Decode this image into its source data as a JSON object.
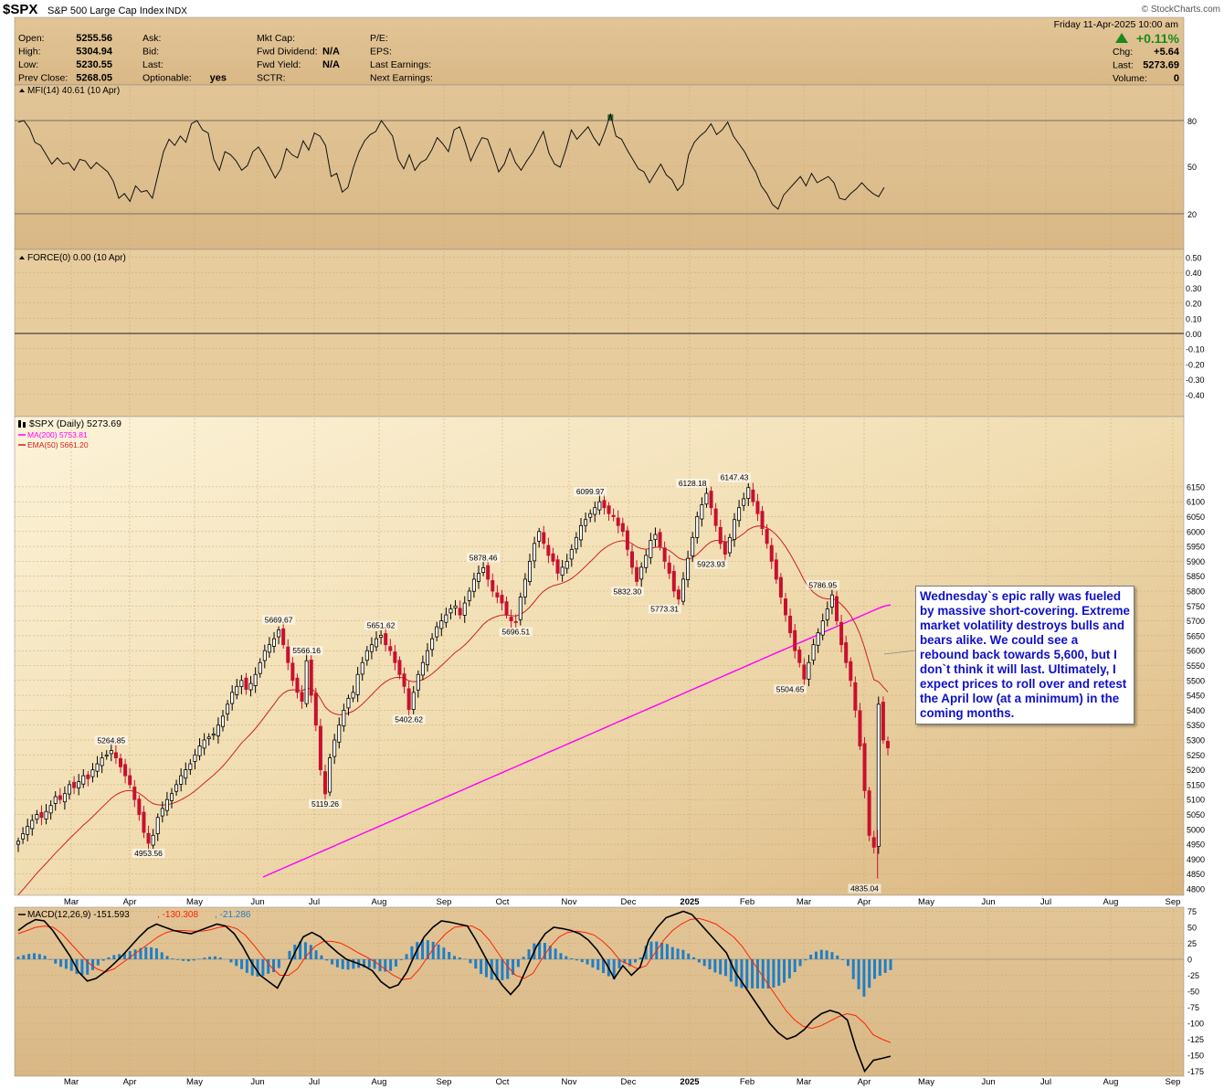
{
  "header": {
    "symbol": "$SPX",
    "name": "S&P 500 Large Cap Index",
    "exchange": "INDX",
    "date": "Friday  11-Apr-2025 10:00 am",
    "brand": "© StockCharts.com",
    "change_pct": "+0.11%",
    "col1": [
      [
        "Open:",
        "5255.56"
      ],
      [
        "High:",
        "5304.94"
      ],
      [
        "Low:",
        "5230.55"
      ],
      [
        "Prev Close:",
        "5268.05"
      ]
    ],
    "col2": [
      [
        "Ask:",
        ""
      ],
      [
        "Bid:",
        ""
      ],
      [
        "Last:",
        ""
      ],
      [
        "Optionable:",
        "yes"
      ]
    ],
    "col3": [
      [
        "Mkt Cap:",
        ""
      ],
      [
        "Fwd Dividend:",
        "N/A"
      ],
      [
        "Fwd Yield:",
        "N/A"
      ],
      [
        "SCTR:",
        ""
      ]
    ],
    "col4": [
      [
        "P/E:",
        ""
      ],
      [
        "EPS:",
        ""
      ],
      [
        "Last Earnings:",
        ""
      ],
      [
        "Next Earnings:",
        ""
      ]
    ],
    "col5": [
      [
        "Chg:",
        "+5.64"
      ],
      [
        "Last:",
        "5273.69"
      ],
      [
        "Volume:",
        "0"
      ]
    ]
  },
  "annotation": "Wednesday`s epic rally was fueled by massive short-covering. Extreme market volatility destroys bulls and bears alike. We could see a rebound back towards 5,600, but I don`t think it will last. Ultimately, I expect prices to roll over and retest the April low (at a minimum) in the coming months.",
  "colors": {
    "panel_bg": "#e6c796",
    "up_bar": "#000000",
    "down_bar": "#c8102e",
    "ma200": "#ff00ff",
    "ema50": "#cc2222",
    "macd_line": "#000000",
    "signal_line": "#ff2200",
    "histogram": "#1e7fc8",
    "mfi_fill": "#2f6a2f"
  },
  "chart_data": [
    {
      "type": "line",
      "legend": "MFI(14) 40.61 (10 Apr)",
      "ylim": [
        0,
        100
      ],
      "yticks": [
        20,
        50,
        80
      ],
      "series": [
        {
          "values": [
            79,
            80,
            75,
            66,
            64,
            58,
            52,
            56,
            52,
            53,
            48,
            55,
            54,
            49,
            53,
            50,
            47,
            41,
            30,
            33,
            28,
            38,
            34,
            35,
            30,
            45,
            60,
            68,
            64,
            70,
            66,
            78,
            80,
            74,
            72,
            55,
            48,
            60,
            58,
            54,
            48,
            51,
            60,
            63,
            57,
            50,
            43,
            49,
            62,
            58,
            56,
            67,
            61,
            72,
            70,
            64,
            44,
            46,
            34,
            37,
            50,
            60,
            67,
            71,
            73,
            80,
            75,
            70,
            55,
            49,
            58,
            48,
            53,
            55,
            61,
            69,
            65,
            60,
            74,
            76,
            66,
            54,
            62,
            69,
            68,
            58,
            47,
            52,
            62,
            53,
            48,
            54,
            59,
            66,
            73,
            59,
            52,
            50,
            61,
            74,
            68,
            72,
            76,
            69,
            64,
            73,
            84,
            70,
            68,
            61,
            55,
            49,
            47,
            40,
            46,
            52,
            45,
            42,
            35,
            39,
            58,
            66,
            70,
            73,
            78,
            71,
            74,
            79,
            70,
            65,
            60,
            53,
            47,
            38,
            33,
            26,
            23,
            32,
            36,
            40,
            44,
            38,
            46,
            40,
            42,
            44,
            40,
            30,
            29,
            33,
            36,
            40,
            36,
            33,
            31,
            37
          ]
        }
      ]
    },
    {
      "type": "line",
      "legend": "FORCE(0) 0.00 (10 Apr)",
      "ylim": [
        -0.5,
        0.5
      ],
      "yticks": [
        0.5,
        0.4,
        0.3,
        0.2,
        0.1,
        0,
        -0.1,
        -0.2,
        -0.3,
        -0.4
      ],
      "ytick_labels": [
        "0.50",
        "0.40",
        "0.30",
        "0.20",
        "0.10",
        "0.00",
        "-0.10",
        "-0.20",
        "-0.30",
        "-0.40"
      ],
      "series": [
        {
          "values": [
            0
          ]
        }
      ]
    },
    {
      "type": "line",
      "legend": "$SPX (Daily) 5273.69",
      "ylim": [
        4785,
        6175
      ],
      "yticks": [
        6150,
        6100,
        6050,
        6000,
        5950,
        5900,
        5850,
        5800,
        5750,
        5700,
        5650,
        5600,
        5550,
        5500,
        5450,
        5400,
        5350,
        5300,
        5250,
        5200,
        5150,
        5100,
        5050,
        5000,
        4950,
        4900,
        4850,
        4800
      ],
      "x_labels": [
        "Mar",
        "Apr",
        "May",
        "Jun",
        "Jul",
        "Aug",
        "Sep",
        "Oct",
        "Nov",
        "Dec",
        "2025",
        "Feb",
        "Mar",
        "Apr",
        "May",
        "Jun",
        "Jul",
        "Aug",
        "Sep"
      ],
      "close": [
        4960,
        4985,
        5010,
        5030,
        5050,
        5040,
        5060,
        5080,
        5110,
        5100,
        5120,
        5150,
        5140,
        5160,
        5180,
        5170,
        5200,
        5220,
        5240,
        5250,
        5264.85,
        5240,
        5210,
        5180,
        5150,
        5100,
        5050,
        4990,
        4953.56,
        4980,
        5040,
        5070,
        5100,
        5120,
        5150,
        5180,
        5200,
        5220,
        5250,
        5280,
        5300,
        5310,
        5320,
        5350,
        5380,
        5420,
        5460,
        5480,
        5500,
        5470,
        5490,
        5520,
        5560,
        5600,
        5620,
        5640,
        5669.67,
        5620,
        5560,
        5500,
        5460,
        5430,
        5566.16,
        5450,
        5350,
        5200,
        5119.26,
        5240,
        5300,
        5350,
        5400,
        5440,
        5460,
        5520,
        5560,
        5600,
        5620,
        5640,
        5651.62,
        5620,
        5600,
        5560,
        5520,
        5480,
        5402.62,
        5460,
        5520,
        5560,
        5600,
        5640,
        5680,
        5700,
        5720,
        5740,
        5750,
        5720,
        5760,
        5800,
        5840,
        5860,
        5878.46,
        5840,
        5800,
        5780,
        5760,
        5720,
        5700,
        5696.51,
        5780,
        5840,
        5900,
        5960,
        6000,
        5960,
        5920,
        5900,
        5860,
        5880,
        5900,
        5940,
        5980,
        6020,
        6040,
        6060,
        6080,
        6099.97,
        6080,
        6060,
        6050,
        6020,
        6000,
        5940,
        5880,
        5832.3,
        5880,
        5920,
        5970,
        5990,
        5950,
        5900,
        5860,
        5800,
        5773.31,
        5840,
        5910,
        5980,
        6050,
        6090,
        6128.18,
        6080,
        6020,
        5960,
        5923.93,
        5980,
        6040,
        6080,
        6110,
        6147.43,
        6100,
        6060,
        6010,
        5960,
        5900,
        5840,
        5780,
        5720,
        5660,
        5600,
        5560,
        5504.65,
        5560,
        5620,
        5660,
        5700,
        5740,
        5786.95,
        5700,
        5620,
        5560,
        5500,
        5400,
        5280,
        5130,
        4980,
        4940,
        5420,
        5300,
        5273.69
      ],
      "ma200": [
        4840,
        4848,
        4856,
        4864,
        4872,
        4880,
        4888,
        4896,
        4904,
        4912,
        4920,
        4928,
        4936,
        4944,
        4952,
        4960,
        4968,
        4976,
        4984,
        4992,
        5000,
        5008,
        5016,
        5024,
        5032,
        5040,
        5048,
        5056,
        5064,
        5072,
        5080,
        5088,
        5096,
        5104,
        5112,
        5120,
        5128,
        5136,
        5144,
        5152,
        5160,
        5168,
        5176,
        5184,
        5192,
        5200,
        5208,
        5216,
        5224,
        5232,
        5240,
        5248,
        5256,
        5264,
        5272,
        5280,
        5288,
        5296,
        5304,
        5312,
        5320,
        5328,
        5336,
        5344,
        5352,
        5360,
        5368,
        5376,
        5384,
        5392,
        5400,
        5408,
        5416,
        5424,
        5432,
        5440,
        5448,
        5456,
        5464,
        5472,
        5480,
        5488,
        5496,
        5504,
        5512,
        5520,
        5528,
        5536,
        5544,
        5552,
        5560,
        5568,
        5576,
        5584,
        5592,
        5600,
        5608,
        5616,
        5624,
        5632,
        5640,
        5648,
        5656,
        5664,
        5672,
        5680,
        5688,
        5696,
        5704,
        5712,
        5720,
        5728,
        5736,
        5744,
        5750,
        5753.81
      ],
      "ema50": [
        4960,
        4985,
        5010,
        5035,
        5060,
        5085,
        5110,
        5135,
        5160,
        5185,
        5210,
        5235,
        5260,
        5285,
        5310,
        5335,
        5360,
        5385,
        5410,
        5435,
        5460,
        5485,
        5510,
        5535,
        5560,
        5585,
        5610,
        5635,
        5660,
        5685,
        5710,
        5735,
        5760,
        5785,
        5810,
        5835,
        5860,
        5885,
        5910,
        5935,
        5960,
        5985,
        6000,
        5980,
        5940,
        5880,
        5820,
        5760,
        5700,
        5661.2
      ],
      "labels": [
        {
          "x": 20,
          "text": "5264.85"
        },
        {
          "x": 28,
          "text": "4953.56"
        },
        {
          "x": 56,
          "text": "5669.67"
        },
        {
          "x": 62,
          "text": "5566.16"
        },
        {
          "x": 66,
          "text": "5119.26"
        },
        {
          "x": 78,
          "text": "5651.62"
        },
        {
          "x": 84,
          "text": "5402.62"
        },
        {
          "x": 100,
          "text": "5878.46"
        },
        {
          "x": 107,
          "text": "5696.51"
        },
        {
          "x": 123,
          "text": "6099.97"
        },
        {
          "x": 131,
          "text": "5832.30"
        },
        {
          "x": 139,
          "text": "5773.31"
        },
        {
          "x": 145,
          "text": "6128.18"
        },
        {
          "x": 149,
          "text": "5923.93"
        },
        {
          "x": 154,
          "text": "6147.43"
        },
        {
          "x": 166,
          "text": "5504.65"
        },
        {
          "x": 173,
          "text": "5786.95"
        },
        {
          "x": 182,
          "text": "4835.04"
        }
      ],
      "legend_ma200": "MA(200) 5753.81",
      "legend_ema50": "EMA(50) 5661.20"
    },
    {
      "type": "line",
      "legend": "MACD(12,26,9) -151.593",
      "legend_signal": ", -130.308",
      "legend_hist": ", -21.286",
      "ylim": [
        -185,
        85
      ],
      "yticks": [
        75,
        50,
        25,
        0,
        -25,
        -50,
        -75,
        -100,
        -125,
        -150,
        -175
      ],
      "macd": [
        45,
        55,
        62,
        60,
        45,
        25,
        5,
        -20,
        -34,
        -30,
        -20,
        -8,
        5,
        20,
        35,
        48,
        55,
        50,
        45,
        42,
        40,
        45,
        50,
        55,
        52,
        40,
        20,
        -5,
        -25,
        -35,
        -45,
        -20,
        10,
        35,
        42,
        35,
        22,
        10,
        0,
        -5,
        -10,
        -18,
        -35,
        -45,
        -40,
        -20,
        10,
        35,
        50,
        60,
        58,
        55,
        52,
        30,
        5,
        -20,
        -40,
        -55,
        -40,
        -10,
        20,
        40,
        50,
        48,
        45,
        40,
        30,
        15,
        -5,
        -30,
        -10,
        -25,
        -12,
        30,
        50,
        65,
        70,
        75,
        70,
        55,
        40,
        25,
        10,
        -20,
        -40,
        -60,
        -80,
        -100,
        -115,
        -125,
        -120,
        -110,
        -95,
        -85,
        -80,
        -84,
        -95,
        -140,
        -175,
        -158,
        -155,
        -151.593
      ],
      "signal": [
        40,
        45,
        50,
        52,
        50,
        40,
        25,
        10,
        -5,
        -15,
        -20,
        -15,
        -5,
        5,
        15,
        25,
        35,
        42,
        45,
        45,
        44,
        44,
        46,
        50,
        52,
        48,
        38,
        22,
        5,
        -12,
        -25,
        -25,
        -15,
        5,
        20,
        28,
        28,
        25,
        18,
        10,
        3,
        -5,
        -15,
        -25,
        -32,
        -30,
        -15,
        5,
        25,
        40,
        50,
        52,
        52,
        45,
        30,
        10,
        -10,
        -25,
        -30,
        -22,
        0,
        20,
        35,
        42,
        44,
        42,
        38,
        28,
        15,
        -2,
        -8,
        -15,
        -10,
        10,
        30,
        45,
        55,
        62,
        64,
        60,
        55,
        45,
        35,
        20,
        0,
        -20,
        -40,
        -60,
        -80,
        -95,
        -105,
        -108,
        -104,
        -97,
        -90,
        -85,
        -88,
        -100,
        -118,
        -125,
        -130.308
      ],
      "histogram": [
        -21.286
      ],
      "x_labels": [
        "Mar",
        "Apr",
        "May",
        "Jun",
        "Jul",
        "Aug",
        "Sep",
        "Oct",
        "Nov",
        "Dec",
        "2025",
        "Feb",
        "Mar",
        "Apr",
        "May",
        "Jun",
        "Jul",
        "Aug",
        "Sep"
      ]
    }
  ]
}
